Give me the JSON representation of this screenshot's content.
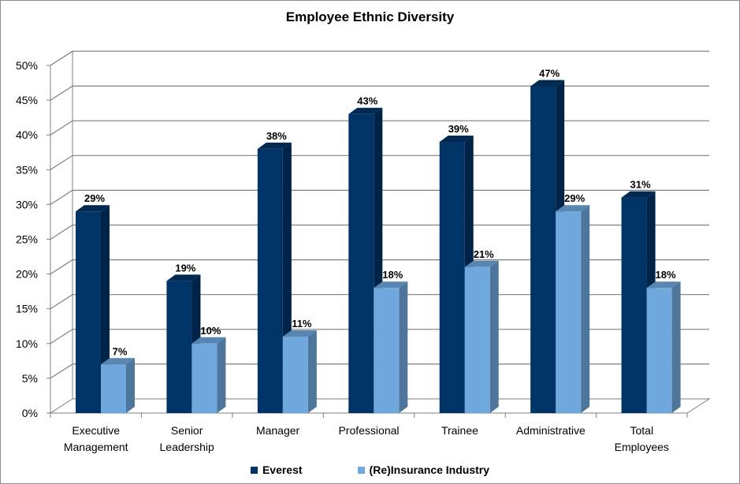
{
  "chart_data": {
    "type": "bar",
    "title": "Employee Ethnic Diversity",
    "xlabel": "",
    "ylabel": "",
    "ylim": [
      0,
      50
    ],
    "yticks": [
      "0%",
      "5%",
      "10%",
      "15%",
      "20%",
      "25%",
      "30%",
      "35%",
      "40%",
      "45%",
      "50%"
    ],
    "categories": [
      [
        "Executive",
        "Management"
      ],
      [
        "Senior",
        "Leadership"
      ],
      [
        "Manager"
      ],
      [
        "Professional"
      ],
      [
        "Trainee"
      ],
      [
        "Administrative"
      ],
      [
        "Total",
        "Employees"
      ]
    ],
    "series": [
      {
        "name": "Everest",
        "color": "#003366",
        "values": [
          29,
          19,
          38,
          43,
          39,
          47,
          31
        ],
        "labels": [
          "29%",
          "19%",
          "38%",
          "43%",
          "39%",
          "47%",
          "31%"
        ]
      },
      {
        "name": "(Re)Insurance Industry",
        "color": "#6fa8dc",
        "values": [
          7,
          10,
          11,
          18,
          21,
          29,
          18
        ],
        "labels": [
          "7%",
          "10%",
          "11%",
          "18%",
          "21%",
          "29%",
          "18%"
        ]
      }
    ],
    "grid": true,
    "legend_position": "bottom"
  }
}
